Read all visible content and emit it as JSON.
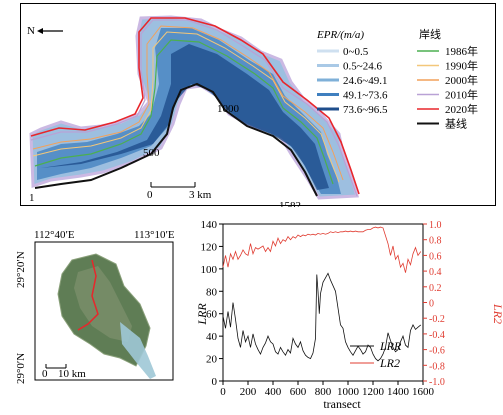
{
  "map": {
    "north_label": "N",
    "legend_epr_title": "EPR/(m/a)",
    "legend_shoreline_title": "岸线",
    "epr_classes": [
      {
        "label": "0~0.5",
        "color": "#cfe0f0"
      },
      {
        "label": "0.5~24.6",
        "color": "#a9c9e6"
      },
      {
        "label": "24.6~49.1",
        "color": "#7fb0d8"
      },
      {
        "label": "49.1~73.6",
        "color": "#3f7fbf"
      },
      {
        "label": "73.6~96.5",
        "color": "#1f4e8c"
      }
    ],
    "shorelines": [
      {
        "label": "1986年",
        "color": "#4caf50"
      },
      {
        "label": "1990年",
        "color": "#f3c77a"
      },
      {
        "label": "2000年",
        "color": "#f2a15a"
      },
      {
        "label": "2010年",
        "color": "#b9a2d6"
      },
      {
        "label": "2020年",
        "color": "#e8262b"
      },
      {
        "label": "基线",
        "color": "#111111"
      }
    ],
    "transect_labels": [
      "1",
      "500",
      "1000",
      "1582"
    ],
    "scalebar": {
      "start": "0",
      "end": "3 km"
    }
  },
  "satellite": {
    "lon_labels": [
      "112°40′E",
      "113°10′E"
    ],
    "lat_labels": [
      "29°20′N",
      "29°0′N"
    ],
    "scalebar": {
      "start": "0",
      "end": "10 km"
    }
  },
  "chart_data": {
    "type": "line",
    "xlabel": "transect",
    "ylabel_left": "LRR",
    "ylabel_right": "LR2",
    "xlim": [
      0,
      1600
    ],
    "ylim_left": [
      0,
      140
    ],
    "ylim_right": [
      -1.0,
      1.0
    ],
    "x_ticks": [
      0,
      200,
      400,
      600,
      800,
      1000,
      1200,
      1400,
      1600
    ],
    "y_ticks_left": [
      0,
      20,
      40,
      60,
      80,
      100,
      120,
      140
    ],
    "y_ticks_right": [
      -1.0,
      -0.8,
      -0.6,
      -0.4,
      -0.2,
      0,
      0.2,
      0.4,
      0.6,
      0.8,
      1.0
    ],
    "legend_position": "bottom-right",
    "series": [
      {
        "name": "LRR",
        "axis": "left",
        "color": "#111111",
        "points": [
          [
            0,
            58
          ],
          [
            20,
            47
          ],
          [
            40,
            62
          ],
          [
            60,
            48
          ],
          [
            80,
            70
          ],
          [
            100,
            55
          ],
          [
            120,
            38
          ],
          [
            140,
            30
          ],
          [
            160,
            45
          ],
          [
            180,
            35
          ],
          [
            200,
            40
          ],
          [
            220,
            30
          ],
          [
            240,
            42
          ],
          [
            260,
            33
          ],
          [
            280,
            28
          ],
          [
            300,
            24
          ],
          [
            320,
            30
          ],
          [
            340,
            34
          ],
          [
            360,
            40
          ],
          [
            380,
            35
          ],
          [
            400,
            33
          ],
          [
            420,
            26
          ],
          [
            440,
            24
          ],
          [
            460,
            30
          ],
          [
            480,
            26
          ],
          [
            500,
            23
          ],
          [
            520,
            28
          ],
          [
            540,
            25
          ],
          [
            560,
            38
          ],
          [
            580,
            33
          ],
          [
            600,
            30
          ],
          [
            620,
            35
          ],
          [
            640,
            27
          ],
          [
            660,
            23
          ],
          [
            680,
            21
          ],
          [
            700,
            20
          ],
          [
            720,
            25
          ],
          [
            740,
            38
          ],
          [
            750,
            95
          ],
          [
            760,
            80
          ],
          [
            770,
            60
          ],
          [
            780,
            78
          ],
          [
            800,
            88
          ],
          [
            820,
            92
          ],
          [
            840,
            96
          ],
          [
            860,
            90
          ],
          [
            880,
            85
          ],
          [
            900,
            80
          ],
          [
            920,
            65
          ],
          [
            940,
            50
          ],
          [
            960,
            47
          ],
          [
            980,
            35
          ],
          [
            1000,
            30
          ],
          [
            1020,
            26
          ],
          [
            1040,
            23
          ],
          [
            1060,
            27
          ],
          [
            1080,
            31
          ],
          [
            1100,
            28
          ],
          [
            1120,
            24
          ],
          [
            1140,
            26
          ],
          [
            1160,
            32
          ],
          [
            1180,
            30
          ],
          [
            1200,
            24
          ],
          [
            1220,
            20
          ],
          [
            1240,
            18
          ],
          [
            1260,
            20
          ],
          [
            1280,
            24
          ],
          [
            1300,
            30
          ],
          [
            1320,
            43
          ],
          [
            1340,
            36
          ],
          [
            1360,
            30
          ],
          [
            1380,
            26
          ],
          [
            1400,
            28
          ],
          [
            1420,
            35
          ],
          [
            1440,
            40
          ],
          [
            1460,
            32
          ],
          [
            1480,
            30
          ],
          [
            1500,
            45
          ],
          [
            1520,
            50
          ],
          [
            1540,
            46
          ],
          [
            1560,
            48
          ],
          [
            1582,
            50
          ]
        ]
      },
      {
        "name": "LR2",
        "axis": "right",
        "color": "#e03c31",
        "points": [
          [
            0,
            0.45
          ],
          [
            20,
            0.6
          ],
          [
            40,
            0.45
          ],
          [
            60,
            0.62
          ],
          [
            80,
            0.55
          ],
          [
            100,
            0.65
          ],
          [
            120,
            0.55
          ],
          [
            140,
            0.6
          ],
          [
            160,
            0.67
          ],
          [
            180,
            0.62
          ],
          [
            200,
            0.6
          ],
          [
            220,
            0.75
          ],
          [
            240,
            0.62
          ],
          [
            260,
            0.7
          ],
          [
            280,
            0.68
          ],
          [
            300,
            0.7
          ],
          [
            320,
            0.72
          ],
          [
            340,
            0.65
          ],
          [
            360,
            0.7
          ],
          [
            380,
            0.65
          ],
          [
            400,
            0.78
          ],
          [
            420,
            0.72
          ],
          [
            440,
            0.82
          ],
          [
            460,
            0.75
          ],
          [
            480,
            0.8
          ],
          [
            500,
            0.78
          ],
          [
            520,
            0.84
          ],
          [
            540,
            0.8
          ],
          [
            560,
            0.84
          ],
          [
            580,
            0.82
          ],
          [
            600,
            0.86
          ],
          [
            620,
            0.84
          ],
          [
            640,
            0.86
          ],
          [
            660,
            0.85
          ],
          [
            680,
            0.87
          ],
          [
            700,
            0.86
          ],
          [
            720,
            0.87
          ],
          [
            740,
            0.86
          ],
          [
            760,
            0.88
          ],
          [
            780,
            0.87
          ],
          [
            800,
            0.88
          ],
          [
            820,
            0.87
          ],
          [
            840,
            0.88
          ],
          [
            860,
            0.9
          ],
          [
            880,
            0.89
          ],
          [
            900,
            0.9
          ],
          [
            920,
            0.89
          ],
          [
            940,
            0.9
          ],
          [
            960,
            0.9
          ],
          [
            980,
            0.91
          ],
          [
            1000,
            0.9
          ],
          [
            1020,
            0.91
          ],
          [
            1040,
            0.9
          ],
          [
            1060,
            0.91
          ],
          [
            1080,
            0.9
          ],
          [
            1100,
            0.9
          ],
          [
            1120,
            0.9
          ],
          [
            1140,
            0.92
          ],
          [
            1160,
            0.93
          ],
          [
            1180,
            0.93
          ],
          [
            1200,
            0.95
          ],
          [
            1220,
            0.96
          ],
          [
            1240,
            0.95
          ],
          [
            1260,
            0.96
          ],
          [
            1280,
            0.95
          ],
          [
            1300,
            0.85
          ],
          [
            1320,
            0.75
          ],
          [
            1340,
            0.6
          ],
          [
            1360,
            0.72
          ],
          [
            1380,
            0.55
          ],
          [
            1400,
            0.6
          ],
          [
            1420,
            0.45
          ],
          [
            1440,
            0.5
          ],
          [
            1460,
            0.38
          ],
          [
            1480,
            0.55
          ],
          [
            1500,
            0.48
          ],
          [
            1520,
            0.62
          ],
          [
            1540,
            0.7
          ],
          [
            1560,
            0.6
          ],
          [
            1582,
            0.65
          ]
        ]
      }
    ]
  }
}
